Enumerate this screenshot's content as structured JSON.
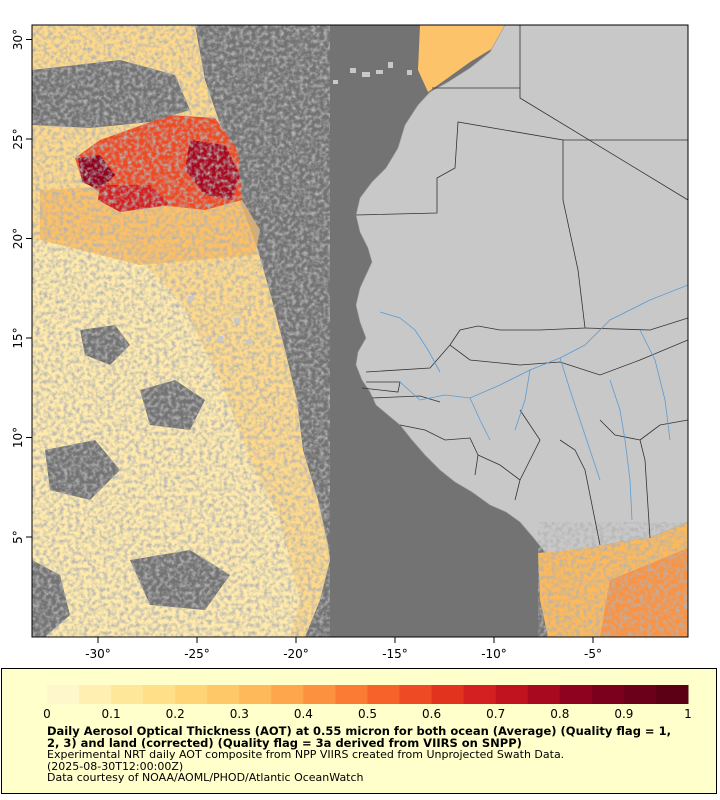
{
  "map": {
    "region": "Eastern tropical Atlantic / West Africa",
    "colors": {
      "ocean_no_data": "#737373",
      "land": "#c8c8c8",
      "borders": "#333333",
      "rivers": "#5b9bd5",
      "frame": "#000000"
    },
    "lon_ticks": [
      {
        "value": -30,
        "label": "-30°"
      },
      {
        "value": -25,
        "label": "-25°"
      },
      {
        "value": -20,
        "label": "-20°"
      },
      {
        "value": -15,
        "label": "-15°"
      },
      {
        "value": -10,
        "label": "-10°"
      },
      {
        "value": -5,
        "label": "-5°"
      }
    ],
    "lat_ticks": [
      {
        "value": 5,
        "label": "5°"
      },
      {
        "value": 10,
        "label": "10°"
      },
      {
        "value": 15,
        "label": "15°"
      },
      {
        "value": 20,
        "label": "20°"
      },
      {
        "value": 25,
        "label": "25°"
      },
      {
        "value": 30,
        "label": "30°"
      }
    ]
  },
  "colorbar": {
    "min": 0,
    "max": 1,
    "tick_labels": [
      "0",
      "0.1",
      "0.2",
      "0.3",
      "0.4",
      "0.5",
      "0.6",
      "0.7",
      "0.8",
      "0.9",
      "1"
    ],
    "colors": [
      "#fff7cc",
      "#ffefb0",
      "#ffe79a",
      "#ffdf88",
      "#ffd477",
      "#fec767",
      "#fdb95a",
      "#fda64c",
      "#fc9240",
      "#fb7b34",
      "#f6622a",
      "#ee4a24",
      "#e2331f",
      "#d42020",
      "#c0131f",
      "#a8091f",
      "#8f021f",
      "#7a001d",
      "#6b001a",
      "#5c0016"
    ]
  },
  "legend": {
    "title": "Daily Aerosol Optical Thickness (AOT) at 0.55 micron for both ocean (Average) (Quality flag = 1, 2, 3) and land (corrected) (Quality flag = 3a derived from VIIRS on SNPP)",
    "description": "Experimental NRT daily AOT composite from NPP VIIRS created from Unprojected Swath Data.",
    "time": "(2025-08-30T12:00:00Z)",
    "credit": "Data courtesy of NOAA/AOML/PHOD/Atlantic OceanWatch"
  }
}
